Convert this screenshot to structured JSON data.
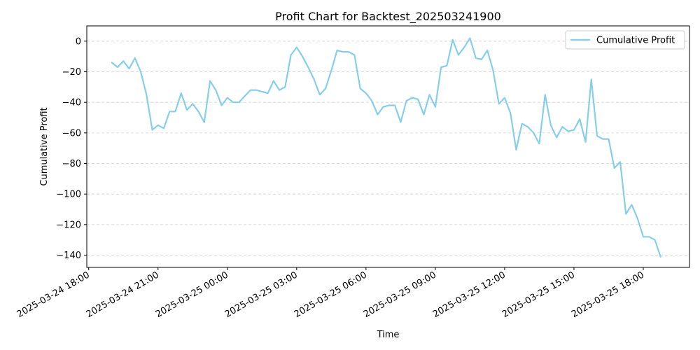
{
  "chart_data": {
    "type": "line",
    "title": "Profit Chart for Backtest_202503241900",
    "xlabel": "Time",
    "ylabel": "Cumulative Profit",
    "x_axis_type": "datetime",
    "xlim": [
      "2025-03-24 17:55",
      "2025-03-25 20:00"
    ],
    "ylim": [
      -148,
      10
    ],
    "x_ticks": [
      "2025-03-24 18:00",
      "2025-03-24 21:00",
      "2025-03-25 00:00",
      "2025-03-25 03:00",
      "2025-03-25 06:00",
      "2025-03-25 09:00",
      "2025-03-25 12:00",
      "2025-03-25 15:00",
      "2025-03-25 18:00"
    ],
    "x_tick_labels": [
      "2025-03-24 18:00",
      "2025-03-24 21:00",
      "2025-03-25 00:00",
      "2025-03-25 03:00",
      "2025-03-25 06:00",
      "2025-03-25 09:00",
      "2025-03-25 12:00",
      "2025-03-25 15:00",
      "2025-03-25 18:00"
    ],
    "y_ticks": [
      0,
      -20,
      -40,
      -60,
      -80,
      -100,
      -120,
      -140
    ],
    "y_tick_labels": [
      "0",
      "−20",
      "−40",
      "−60",
      "−80",
      "−100",
      "−120",
      "−140"
    ],
    "grid": "horizontal dashed",
    "legend_position": "top-right",
    "series": [
      {
        "name": "Cumulative Profit",
        "color": "#87ceeb",
        "x": [
          "2025-03-24 19:00",
          "2025-03-24 19:15",
          "2025-03-24 19:30",
          "2025-03-24 19:45",
          "2025-03-24 20:00",
          "2025-03-24 20:15",
          "2025-03-24 20:30",
          "2025-03-24 20:45",
          "2025-03-24 21:00",
          "2025-03-24 21:15",
          "2025-03-24 21:30",
          "2025-03-24 21:45",
          "2025-03-24 22:00",
          "2025-03-24 22:15",
          "2025-03-24 22:30",
          "2025-03-24 22:45",
          "2025-03-24 23:00",
          "2025-03-24 23:15",
          "2025-03-24 23:30",
          "2025-03-24 23:45",
          "2025-03-25 00:00",
          "2025-03-25 00:15",
          "2025-03-25 00:30",
          "2025-03-25 00:45",
          "2025-03-25 01:00",
          "2025-03-25 01:15",
          "2025-03-25 01:30",
          "2025-03-25 01:45",
          "2025-03-25 02:00",
          "2025-03-25 02:15",
          "2025-03-25 02:30",
          "2025-03-25 02:45",
          "2025-03-25 03:00",
          "2025-03-25 03:15",
          "2025-03-25 03:30",
          "2025-03-25 03:45",
          "2025-03-25 04:00",
          "2025-03-25 04:15",
          "2025-03-25 04:30",
          "2025-03-25 04:45",
          "2025-03-25 05:00",
          "2025-03-25 05:15",
          "2025-03-25 05:30",
          "2025-03-25 05:45",
          "2025-03-25 06:00",
          "2025-03-25 06:15",
          "2025-03-25 06:30",
          "2025-03-25 06:45",
          "2025-03-25 07:00",
          "2025-03-25 07:15",
          "2025-03-25 07:30",
          "2025-03-25 07:45",
          "2025-03-25 08:00",
          "2025-03-25 08:15",
          "2025-03-25 08:30",
          "2025-03-25 08:45",
          "2025-03-25 09:00",
          "2025-03-25 09:15",
          "2025-03-25 09:30",
          "2025-03-25 09:45",
          "2025-03-25 10:00",
          "2025-03-25 10:15",
          "2025-03-25 10:30",
          "2025-03-25 10:45",
          "2025-03-25 11:00",
          "2025-03-25 11:15",
          "2025-03-25 11:30",
          "2025-03-25 11:45",
          "2025-03-25 12:00",
          "2025-03-25 12:15",
          "2025-03-25 12:30",
          "2025-03-25 12:45",
          "2025-03-25 13:00",
          "2025-03-25 13:15",
          "2025-03-25 13:30",
          "2025-03-25 13:45",
          "2025-03-25 14:00",
          "2025-03-25 14:15",
          "2025-03-25 14:30",
          "2025-03-25 14:45",
          "2025-03-25 15:00",
          "2025-03-25 15:15",
          "2025-03-25 15:30",
          "2025-03-25 15:45",
          "2025-03-25 16:00",
          "2025-03-25 16:15",
          "2025-03-25 16:30",
          "2025-03-25 16:45",
          "2025-03-25 17:00",
          "2025-03-25 17:15",
          "2025-03-25 17:30",
          "2025-03-25 17:45",
          "2025-03-25 18:00",
          "2025-03-25 18:15",
          "2025-03-25 18:30",
          "2025-03-25 18:45"
        ],
        "values": [
          -14,
          -17,
          -13,
          -18,
          -11,
          -20,
          -35,
          -58,
          -55,
          -57,
          -46,
          -46,
          -34,
          -45,
          -41,
          -46,
          -53,
          -26,
          -32,
          -42,
          -37,
          -40,
          -40,
          -36,
          -32,
          -32,
          -33,
          -34,
          -26,
          -32,
          -30,
          -9,
          -4,
          -10,
          -17,
          -25,
          -35,
          -31,
          -19,
          -6,
          -7,
          -7,
          -9,
          -31,
          -34,
          -39,
          -48,
          -43,
          -42,
          -42,
          -53,
          -39,
          -37,
          -38,
          -48,
          -35,
          -43,
          -17,
          -16,
          1,
          -9,
          -4,
          2,
          -11,
          -12,
          -6,
          -19,
          -41,
          -37,
          -47,
          -71,
          -54,
          -56,
          -60,
          -67,
          -35,
          -55,
          -63,
          -56,
          -59,
          -58,
          -51,
          -66,
          -25,
          -62,
          -64,
          -64,
          -83,
          -79,
          -113,
          -107,
          -116,
          -128,
          -128,
          -130,
          -141
        ]
      }
    ]
  }
}
